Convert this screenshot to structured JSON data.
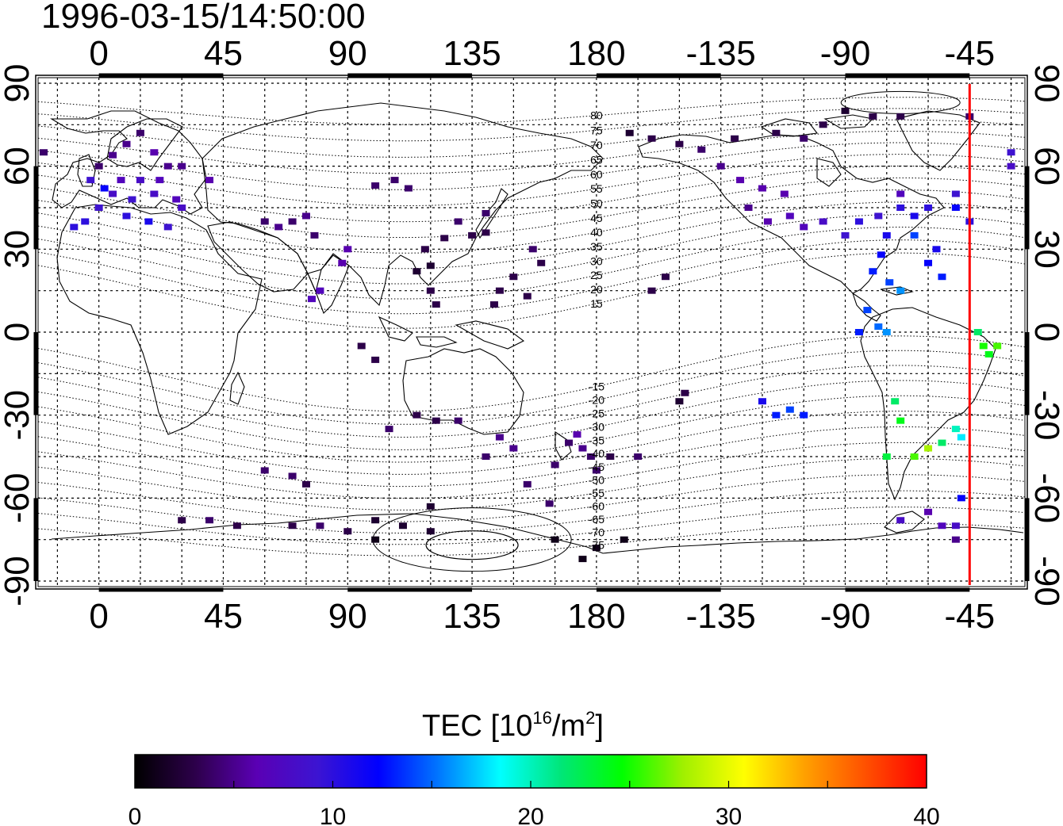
{
  "timestamp": "1996-03-15/14:50:00",
  "map": {
    "top_lon_labels": [
      "0",
      "45",
      "90",
      "135",
      "180",
      "-135",
      "-90",
      "-45"
    ],
    "bottom_lon_labels": [
      "0",
      "45",
      "90",
      "135",
      "180",
      "-135",
      "-90",
      "-45"
    ],
    "left_lat_labels": [
      "90",
      "60",
      "30",
      "0",
      "-30",
      "-60",
      "-90"
    ],
    "right_lat_labels": [
      "90",
      "60",
      "30",
      "0",
      "-30",
      "-60",
      "-90"
    ],
    "lon_label_values": [
      0,
      45,
      90,
      135,
      180,
      225,
      270,
      315
    ],
    "lat_label_values": [
      90,
      60,
      30,
      0,
      -30,
      -60,
      -90
    ],
    "lon_range": [
      -22,
      335
    ],
    "lat_range": [
      -92,
      92
    ],
    "grid": true,
    "magnetic_lat_labels": [
      "80",
      "75",
      "70",
      "65",
      "60",
      "55",
      "50",
      "45",
      "40",
      "35",
      "30",
      "25",
      "20",
      "15",
      "-15",
      "-20",
      "-25",
      "-30",
      "-35",
      "-40",
      "-45",
      "-50",
      "-55",
      "-60",
      "-65",
      "-70",
      "-75"
    ],
    "magnetic_lat_values": [
      80,
      75,
      70,
      65,
      60,
      55,
      50,
      45,
      40,
      35,
      30,
      25,
      20,
      15,
      -15,
      -20,
      -25,
      -30,
      -35,
      -40,
      -45,
      -50,
      -55,
      -60,
      -65,
      -70,
      -75
    ],
    "terminator_line": {
      "lon": 315,
      "color": "#ff0000"
    }
  },
  "colorbar": {
    "title_prefix": "TEC  [10",
    "title_sup1": "16",
    "title_mid": "/m",
    "title_sup2": "2",
    "title_suffix": "]",
    "tick_labels": [
      "0",
      "10",
      "20",
      "30",
      "40"
    ],
    "range": [
      0,
      40
    ],
    "stops": [
      "#000000",
      "#2d004b",
      "#5a00b4",
      "#3c14d2",
      "#0000ff",
      "#0078ff",
      "#00ffff",
      "#00e678",
      "#00ff00",
      "#a0f000",
      "#ffff00",
      "#ffa000",
      "#ff5000",
      "#ff0000"
    ]
  },
  "chart_data": {
    "type": "scatter",
    "title": "1996-03-15/14:50:00",
    "colorbar_label": "TEC [10^16/m^2]",
    "x_range": [
      -22,
      335
    ],
    "y_range": [
      -92,
      92
    ],
    "points": [
      [
        0,
        60,
        4
      ],
      [
        5,
        64,
        5
      ],
      [
        10,
        68,
        5
      ],
      [
        15,
        72,
        4
      ],
      [
        20,
        65,
        6
      ],
      [
        25,
        60,
        5
      ],
      [
        8,
        55,
        7
      ],
      [
        15,
        55,
        8
      ],
      [
        22,
        55,
        7
      ],
      [
        5,
        50,
        8
      ],
      [
        12,
        48,
        9
      ],
      [
        20,
        50,
        8
      ],
      [
        28,
        48,
        7
      ],
      [
        0,
        45,
        9
      ],
      [
        10,
        42,
        10
      ],
      [
        18,
        40,
        11
      ],
      [
        -5,
        40,
        10
      ],
      [
        -9,
        38,
        10
      ],
      [
        25,
        38,
        9
      ],
      [
        30,
        45,
        8
      ],
      [
        2,
        52,
        12
      ],
      [
        -3,
        55,
        9
      ],
      [
        30,
        60,
        5
      ],
      [
        40,
        55,
        6
      ],
      [
        -20,
        65,
        4
      ],
      [
        70,
        40,
        4
      ],
      [
        75,
        42,
        5
      ],
      [
        65,
        38,
        5
      ],
      [
        78,
        35,
        4
      ],
      [
        60,
        40,
        4
      ],
      [
        100,
        53,
        4
      ],
      [
        107,
        55,
        4
      ],
      [
        112,
        52,
        4
      ],
      [
        90,
        30,
        6
      ],
      [
        88,
        25,
        6
      ],
      [
        80,
        15,
        7
      ],
      [
        77,
        12,
        7
      ],
      [
        115,
        22,
        2
      ],
      [
        120,
        24,
        2
      ],
      [
        118,
        30,
        3
      ],
      [
        125,
        34,
        3
      ],
      [
        135,
        35,
        3
      ],
      [
        140,
        36,
        3
      ],
      [
        130,
        40,
        4
      ],
      [
        140,
        43,
        4
      ],
      [
        120,
        15,
        3
      ],
      [
        122,
        10,
        3
      ],
      [
        145,
        15,
        3
      ],
      [
        150,
        20,
        3
      ],
      [
        160,
        25,
        3
      ],
      [
        157,
        30,
        4
      ],
      [
        143,
        10,
        3
      ],
      [
        155,
        13,
        3
      ],
      [
        95,
        -5,
        3
      ],
      [
        100,
        -10,
        3
      ],
      [
        115,
        -30,
        3
      ],
      [
        122,
        -32,
        3
      ],
      [
        105,
        -35,
        4
      ],
      [
        130,
        -32,
        4
      ],
      [
        145,
        -38,
        5
      ],
      [
        150,
        -42,
        5
      ],
      [
        140,
        -45,
        4
      ],
      [
        155,
        -55,
        4
      ],
      [
        170,
        -40,
        4
      ],
      [
        175,
        -42,
        5
      ],
      [
        178,
        -45,
        4
      ],
      [
        165,
        -48,
        4
      ],
      [
        173,
        -37,
        6
      ],
      [
        180,
        -50,
        4
      ],
      [
        185,
        -45,
        3
      ],
      [
        163,
        -62,
        4
      ],
      [
        60,
        -50,
        4
      ],
      [
        70,
        -52,
        4
      ],
      [
        75,
        -55,
        3
      ],
      [
        30,
        -68,
        3
      ],
      [
        40,
        -68,
        4
      ],
      [
        50,
        -70,
        3
      ],
      [
        70,
        -70,
        3
      ],
      [
        80,
        -70,
        4
      ],
      [
        90,
        -72,
        3
      ],
      [
        100,
        -68,
        2
      ],
      [
        110,
        -70,
        2
      ],
      [
        120,
        -72,
        2
      ],
      [
        100,
        -75,
        1
      ],
      [
        165,
        -75,
        1
      ],
      [
        180,
        -78,
        1
      ],
      [
        175,
        -82,
        1
      ],
      [
        190,
        -75,
        1
      ],
      [
        120,
        -63,
        2
      ],
      [
        205,
        20,
        3
      ],
      [
        200,
        15,
        3
      ],
      [
        210,
        -25,
        2
      ],
      [
        212,
        -22,
        3
      ],
      [
        195,
        -45,
        4
      ],
      [
        192,
        72,
        2
      ],
      [
        200,
        70,
        3
      ],
      [
        210,
        68,
        3
      ],
      [
        218,
        66,
        4
      ],
      [
        230,
        70,
        3
      ],
      [
        245,
        72,
        3
      ],
      [
        255,
        70,
        4
      ],
      [
        262,
        75,
        3
      ],
      [
        270,
        80,
        2
      ],
      [
        280,
        78,
        3
      ],
      [
        290,
        78,
        3
      ],
      [
        315,
        78,
        4
      ],
      [
        225,
        60,
        5
      ],
      [
        232,
        55,
        6
      ],
      [
        240,
        52,
        6
      ],
      [
        248,
        50,
        6
      ],
      [
        235,
        45,
        5
      ],
      [
        242,
        40,
        6
      ],
      [
        250,
        42,
        7
      ],
      [
        255,
        38,
        7
      ],
      [
        262,
        40,
        8
      ],
      [
        270,
        35,
        9
      ],
      [
        275,
        40,
        10
      ],
      [
        282,
        42,
        9
      ],
      [
        290,
        45,
        10
      ],
      [
        295,
        42,
        11
      ],
      [
        300,
        45,
        10
      ],
      [
        285,
        35,
        11
      ],
      [
        283,
        28,
        12
      ],
      [
        280,
        22,
        13
      ],
      [
        286,
        18,
        14
      ],
      [
        290,
        15,
        16
      ],
      [
        278,
        8,
        14
      ],
      [
        282,
        2,
        15
      ],
      [
        285,
        0,
        16
      ],
      [
        275,
        0,
        13
      ],
      [
        288,
        -25,
        22
      ],
      [
        290,
        -32,
        24
      ],
      [
        285,
        -45,
        23
      ],
      [
        295,
        -45,
        26
      ],
      [
        300,
        -42,
        28
      ],
      [
        305,
        -40,
        22
      ],
      [
        310,
        -35,
        20
      ],
      [
        312,
        -38,
        18
      ],
      [
        320,
        -5,
        25
      ],
      [
        322,
        -8,
        24
      ],
      [
        325,
        -5,
        26
      ],
      [
        318,
        0,
        22
      ],
      [
        245,
        -30,
        13
      ],
      [
        250,
        -28,
        14
      ],
      [
        255,
        -30,
        13
      ],
      [
        240,
        -25,
        11
      ],
      [
        290,
        -68,
        8
      ],
      [
        305,
        -70,
        7
      ],
      [
        310,
        -70,
        8
      ],
      [
        300,
        -65,
        6
      ],
      [
        312,
        -60,
        12
      ],
      [
        310,
        -75,
        5
      ],
      [
        330,
        65,
        9
      ],
      [
        330,
        60,
        8
      ],
      [
        315,
        40,
        10
      ],
      [
        310,
        45,
        12
      ],
      [
        303,
        30,
        11
      ],
      [
        300,
        25,
        12
      ],
      [
        305,
        20,
        13
      ],
      [
        295,
        35,
        14
      ],
      [
        290,
        50,
        7
      ],
      [
        310,
        50,
        9
      ]
    ]
  }
}
